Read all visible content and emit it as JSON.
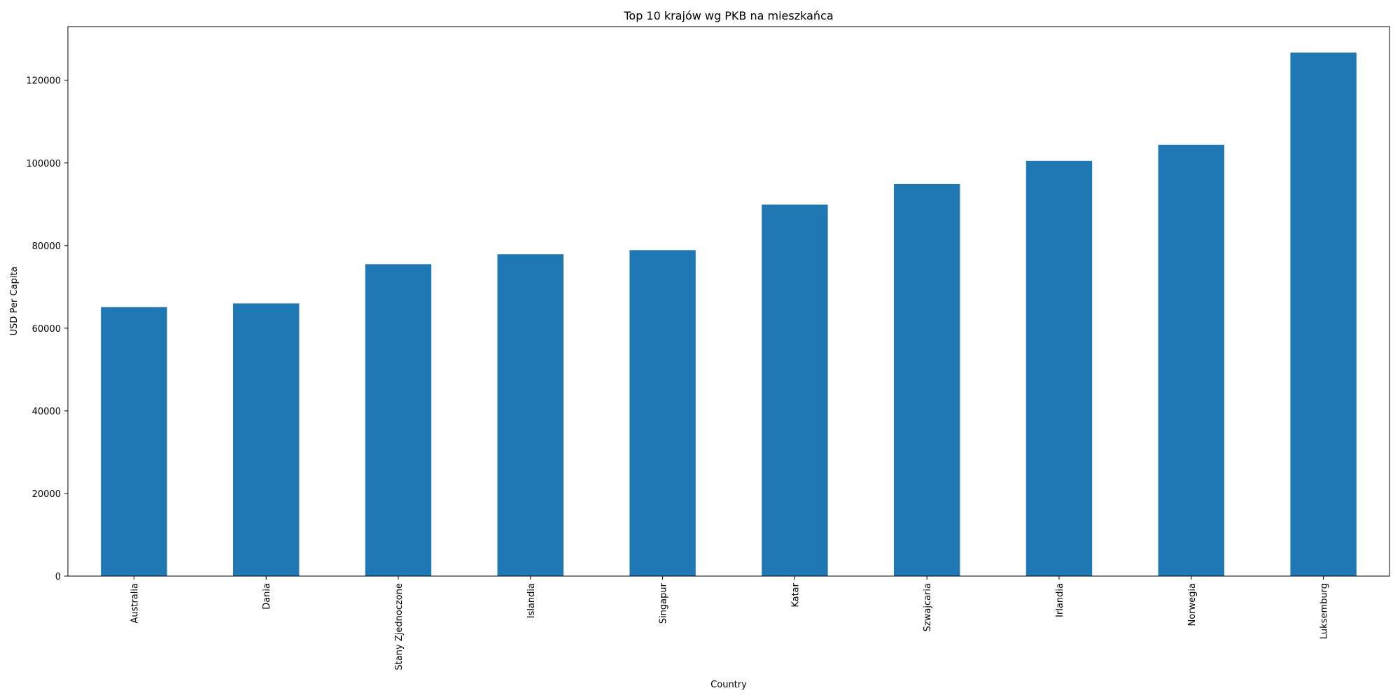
{
  "chart_data": {
    "type": "bar",
    "title": "Top 10 krajów wg PKB na mieszkańca",
    "x_label": "Country",
    "y_label": "USD Per Capita",
    "categories": [
      "Australia",
      "Dania",
      "Stany Zjednoczone",
      "Islandia",
      "Singapur",
      "Katar",
      "Szwajcaria",
      "Irlandia",
      "Norwegia",
      "Luksemburg"
    ],
    "values": [
      65100,
      66000,
      75500,
      77900,
      78900,
      89900,
      94900,
      100500,
      104400,
      126700
    ],
    "color": "#1f77b4",
    "ylim": [
      0,
      133000
    ],
    "yticks": [
      0,
      20000,
      40000,
      60000,
      80000,
      100000,
      120000
    ],
    "grid": false
  }
}
